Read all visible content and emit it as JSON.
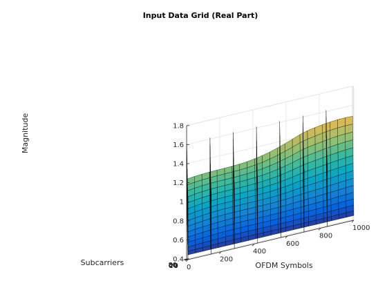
{
  "chart_data": {
    "type": "surface",
    "title": "Input Data Grid (Real Part)",
    "xlabel": "OFDM Symbols",
    "ylabel": "Subcarriers",
    "zlabel": "Magnitude",
    "xlim": [
      0,
      1000
    ],
    "ylim": [
      0,
      80
    ],
    "zlim": [
      0.4,
      1.8
    ],
    "x_ticks": [
      "0",
      "200",
      "400",
      "600",
      "800",
      "1000"
    ],
    "y_ticks": [
      "0",
      "20",
      "40",
      "60",
      "80"
    ],
    "z_ticks": [
      "0.4",
      "0.6",
      "0.8",
      "1",
      "1.2",
      "1.4",
      "1.6",
      "1.8"
    ],
    "grid": true,
    "colormap": "parula",
    "pilot_symbol_columns": [
      0,
      140,
      280,
      420,
      560,
      700,
      840
    ],
    "pilot_peak_magnitude": 1.75,
    "data_surface": {
      "min_magnitude": 0.45,
      "max_magnitude": 1.65,
      "description_points": [
        {
          "x": 0,
          "y": 70,
          "z": 1.1
        },
        {
          "x": 500,
          "y": 70,
          "z": 1.45
        },
        {
          "x": 950,
          "y": 70,
          "z": 1.6
        },
        {
          "x": 500,
          "y": 0,
          "z": 0.45
        }
      ]
    }
  }
}
